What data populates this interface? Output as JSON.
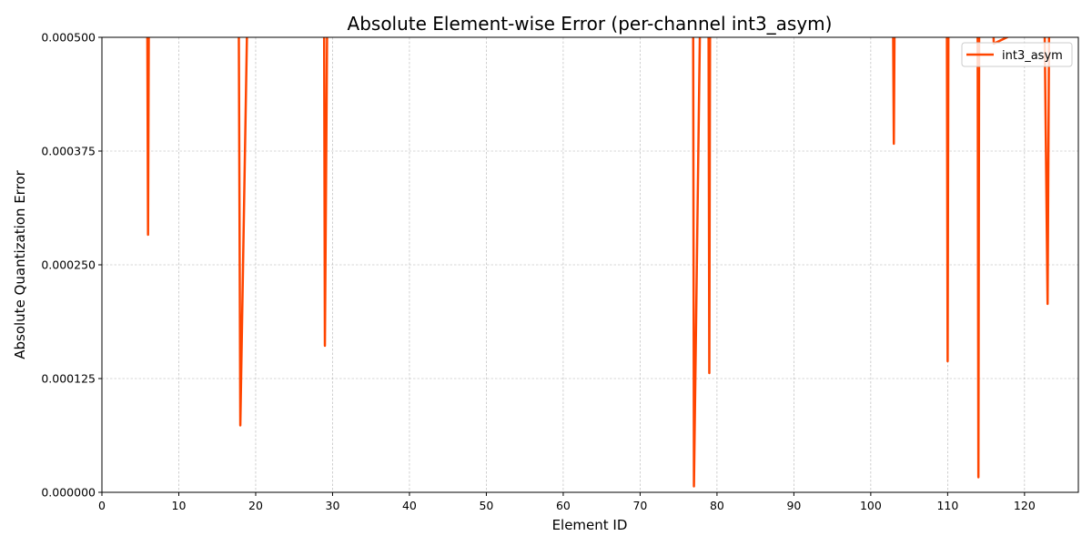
{
  "chart_data": {
    "type": "line",
    "title": "Absolute Element-wise Error (per-channel int3_asym)",
    "xlabel": "Element ID",
    "ylabel": "Absolute Quantization Error",
    "xlim": [
      0,
      127
    ],
    "ylim": [
      0,
      0.0005
    ],
    "x_ticks": [
      0,
      10,
      20,
      30,
      40,
      50,
      60,
      70,
      80,
      90,
      100,
      110,
      120
    ],
    "y_ticks": [
      0.0,
      0.000125,
      0.00025,
      0.000375,
      0.0005
    ],
    "y_tick_labels": [
      "0.000000",
      "0.000125",
      "0.000250",
      "0.000375",
      "0.000500"
    ],
    "grid": true,
    "legend_position": "top-right",
    "color": "#ff4500",
    "series": [
      {
        "name": "int3_asym",
        "x": [
          5.9,
          6,
          6.1,
          17.8,
          18,
          18.9,
          28.9,
          29,
          29.3,
          76.9,
          77,
          77.8,
          78.1,
          78.9,
          79,
          79.1,
          102.9,
          103,
          103.1,
          109.9,
          110,
          110.1,
          113.9,
          114,
          114.1,
          115.9,
          116,
          122.6,
          123,
          123.2
        ],
        "y": [
          0.00052,
          0.000283,
          0.00052,
          0.00052,
          7.35e-05,
          0.00052,
          0.00052,
          0.000161,
          0.00052,
          0.00052,
          6.5e-06,
          0.00052,
          0.00052,
          0.00052,
          0.000131,
          0.00052,
          0.00052,
          0.000383,
          0.00052,
          0.00052,
          0.000144,
          0.00052,
          0.00052,
          1.65e-05,
          0.00052,
          0.00052,
          0.000493,
          0.00052,
          0.000207,
          0.00052
        ]
      }
    ]
  }
}
